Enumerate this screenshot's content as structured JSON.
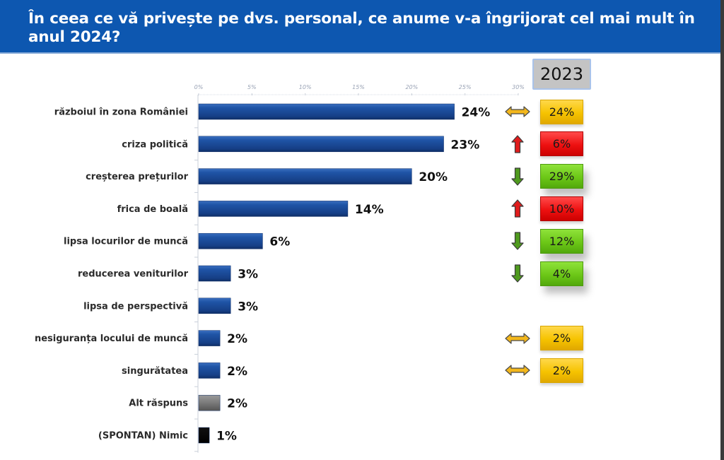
{
  "header": {
    "title": "În ceea ce vă privește pe dvs. personal, ce anume v-a îngrijorat cel mai mult în anul 2024?"
  },
  "comparison": {
    "year_label": "2023"
  },
  "colors": {
    "header_bg": "#0d57b0",
    "bar_blue": "#1a4a96",
    "bar_gray": "#808080",
    "bar_black": "#000000",
    "box_yellow": "#f6c300",
    "box_red": "#ee1111",
    "box_green": "#6cc717"
  },
  "chart_data": {
    "type": "bar",
    "orientation": "horizontal",
    "title": "În ceea ce vă privește pe dvs. personal, ce anume v-a îngrijorat cel mai mult în anul 2024?",
    "xlabel": "",
    "ylabel": "",
    "xlim": [
      0,
      30
    ],
    "x_ticks": [
      "0%",
      "5%",
      "10%",
      "15%",
      "20%",
      "25%",
      "30%"
    ],
    "x_tick_values": [
      0,
      5,
      10,
      15,
      20,
      25,
      30
    ],
    "grid": false,
    "categories": [
      "războiul în zona României",
      "criza politică",
      "creșterea prețurilor",
      "frica de boală",
      "lipsa locurilor de muncă",
      "reducerea veniturilor",
      "lipsa de perspectivă",
      "nesiguranța locului de muncă",
      "singurătatea",
      "Alt răspuns",
      "(SPONTAN) Nimic"
    ],
    "series": [
      {
        "name": "2024",
        "values": [
          24,
          23,
          20,
          14,
          6,
          3,
          3,
          2,
          2,
          2,
          1
        ],
        "labels": [
          "24%",
          "23%",
          "20%",
          "14%",
          "6%",
          "3%",
          "3%",
          "2%",
          "2%",
          "2%",
          "1%"
        ],
        "bar_colors": [
          "blue",
          "blue",
          "blue",
          "blue",
          "blue",
          "blue",
          "blue",
          "blue",
          "blue",
          "gray",
          "black"
        ]
      }
    ],
    "comparison_2023": [
      {
        "category": "războiul în zona României",
        "value": "24%",
        "trend": "equal",
        "color": "yellow"
      },
      {
        "category": "criza politică",
        "value": "6%",
        "trend": "up",
        "color": "red"
      },
      {
        "category": "creșterea prețurilor",
        "value": "29%",
        "trend": "down",
        "color": "green"
      },
      {
        "category": "frica de boală",
        "value": "10%",
        "trend": "up",
        "color": "red"
      },
      {
        "category": "lipsa locurilor de muncă",
        "value": "12%",
        "trend": "down",
        "color": "green"
      },
      {
        "category": "reducerea veniturilor",
        "value": "4%",
        "trend": "down",
        "color": "green"
      },
      {
        "category": "lipsa de perspectivă",
        "value": null,
        "trend": null,
        "color": null
      },
      {
        "category": "nesiguranța locului de muncă",
        "value": "2%",
        "trend": "equal",
        "color": "yellow"
      },
      {
        "category": "singurătatea",
        "value": "2%",
        "trend": "equal",
        "color": "yellow"
      },
      {
        "category": "Alt răspuns",
        "value": null,
        "trend": null,
        "color": null
      },
      {
        "category": "(SPONTAN) Nimic",
        "value": null,
        "trend": null,
        "color": null
      }
    ]
  }
}
